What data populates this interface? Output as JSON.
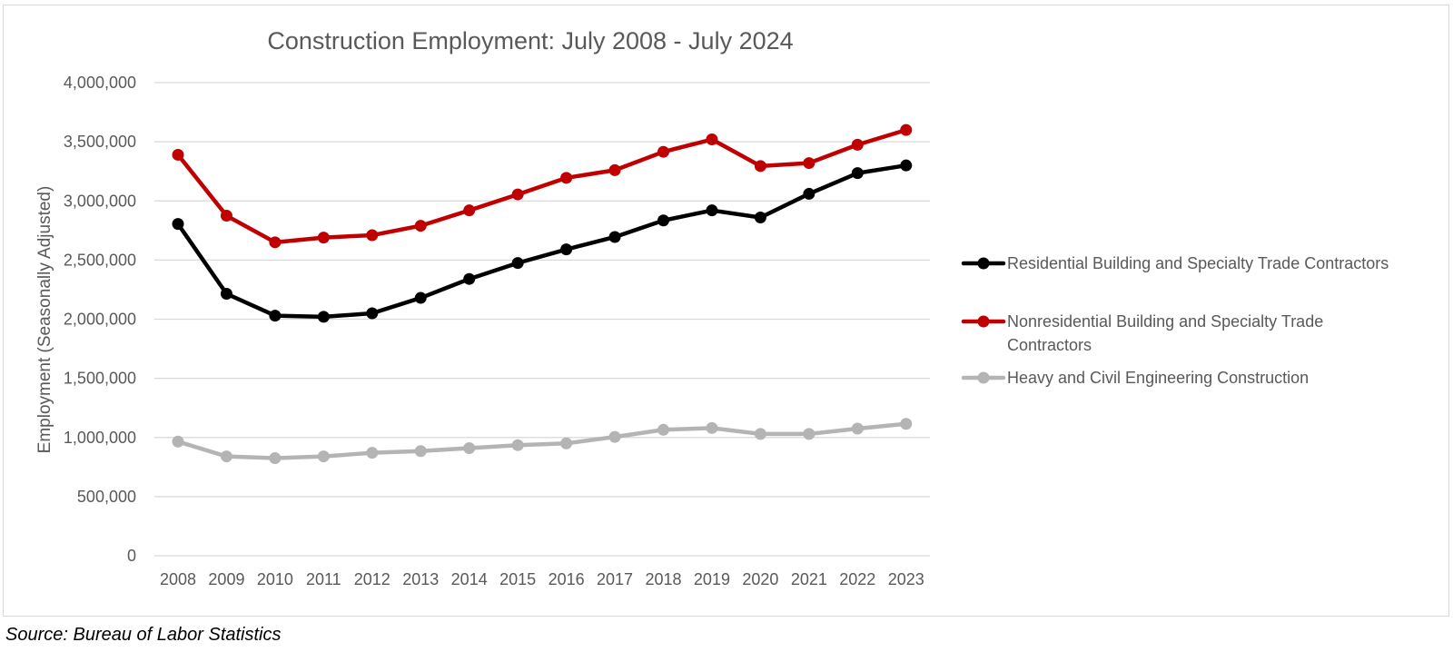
{
  "chart_data": {
    "type": "line",
    "title": "Construction Employment: July 2008 - July 2024",
    "xlabel": "",
    "ylabel": "Employment (Seasonally Adjusted)",
    "categories": [
      "2008",
      "2009",
      "2010",
      "2011",
      "2012",
      "2013",
      "2014",
      "2015",
      "2016",
      "2017",
      "2018",
      "2019",
      "2020",
      "2021",
      "2022",
      "2023"
    ],
    "ylim": [
      0,
      4000000
    ],
    "y_ticks": [
      "0",
      "500,000",
      "1,000,000",
      "1,500,000",
      "2,000,000",
      "2,500,000",
      "3,000,000",
      "3,500,000",
      "4,000,000"
    ],
    "grid": true,
    "legend_position": "right",
    "series": [
      {
        "name": "Residential Building and Specialty Trade Contractors",
        "color": "#000000",
        "values": [
          2805000,
          2215000,
          2030000,
          2020000,
          2050000,
          2180000,
          2340000,
          2475000,
          2590000,
          2695000,
          2835000,
          2920000,
          2860000,
          3060000,
          3235000,
          3300000
        ]
      },
      {
        "name": "Nonresidential Building and Specialty Trade Contractors",
        "color": "#c00000",
        "values": [
          3390000,
          2875000,
          2650000,
          2690000,
          2710000,
          2790000,
          2920000,
          3055000,
          3195000,
          3260000,
          3415000,
          3520000,
          3295000,
          3320000,
          3475000,
          3600000
        ]
      },
      {
        "name": "Heavy and Civil Engineering Construction",
        "color": "#b4b4b4",
        "values": [
          965000,
          840000,
          825000,
          840000,
          870000,
          885000,
          910000,
          935000,
          950000,
          1005000,
          1065000,
          1080000,
          1030000,
          1030000,
          1075000,
          1115000
        ]
      }
    ]
  },
  "source": "Source: Bureau of Labor Statistics"
}
